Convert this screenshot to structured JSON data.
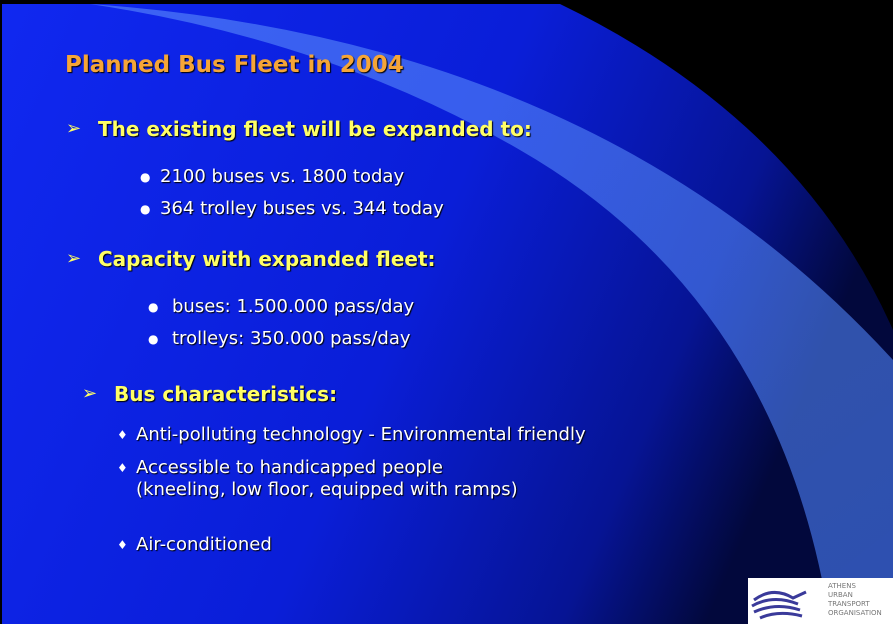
{
  "title": "Planned Bus Fleet in 2004",
  "sections": [
    {
      "heading": "The existing fleet will be expanded to:",
      "items": [
        "2100 buses vs. 1800 today",
        "364 trolley buses vs. 344 today"
      ]
    },
    {
      "heading": "Capacity with expanded fleet:",
      "items": [
        "buses: 1.500.000 pass/day",
        "trolleys: 350.000 pass/day"
      ]
    },
    {
      "heading": "Bus characteristics:",
      "items": [
        "Anti-polluting technology - Environmental friendly",
        "Accessible to handicapped people\n(kneeling, low floor, equipped with ramps)",
        "Air-conditioned"
      ]
    }
  ],
  "logo": {
    "lines": [
      "ATHENS",
      "URBAN",
      "TRANSPORT",
      "ORGANISATION"
    ]
  }
}
